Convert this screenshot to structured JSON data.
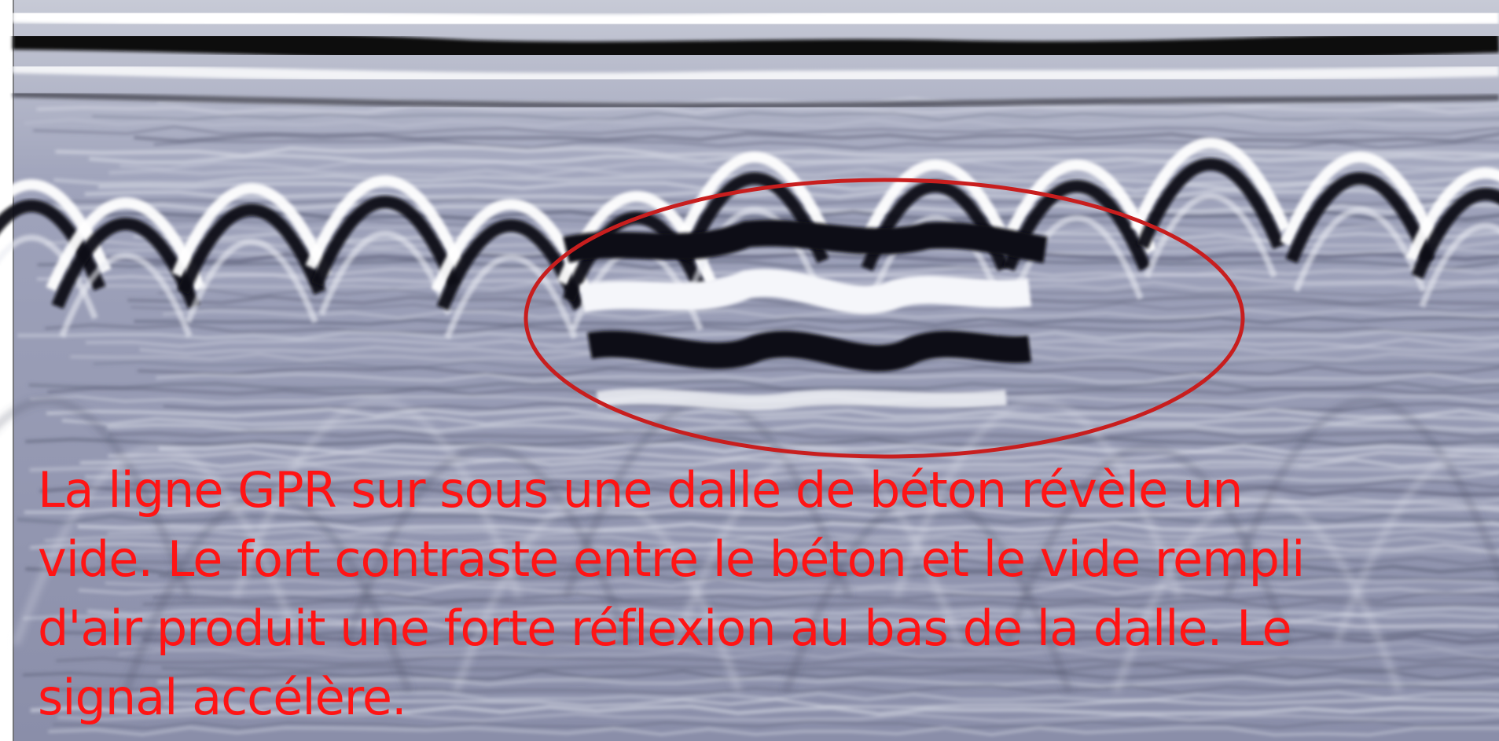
{
  "image": {
    "subject": "GPR radargram of a concrete slab showing hyperbolic rebar reflections with an ellipse highlighting a void",
    "background_color": "#8f93ad",
    "annotation_color": "#c81e1e"
  },
  "caption": {
    "color": "#ff1414",
    "lines": [
      "La ligne GPR sur sous une dalle de béton révèle un",
      "vide. Le fort contraste entre le béton et le vide rempli",
      "d'air produit une forte réflexion au bas de la dalle. Le",
      "signal accélère."
    ]
  }
}
